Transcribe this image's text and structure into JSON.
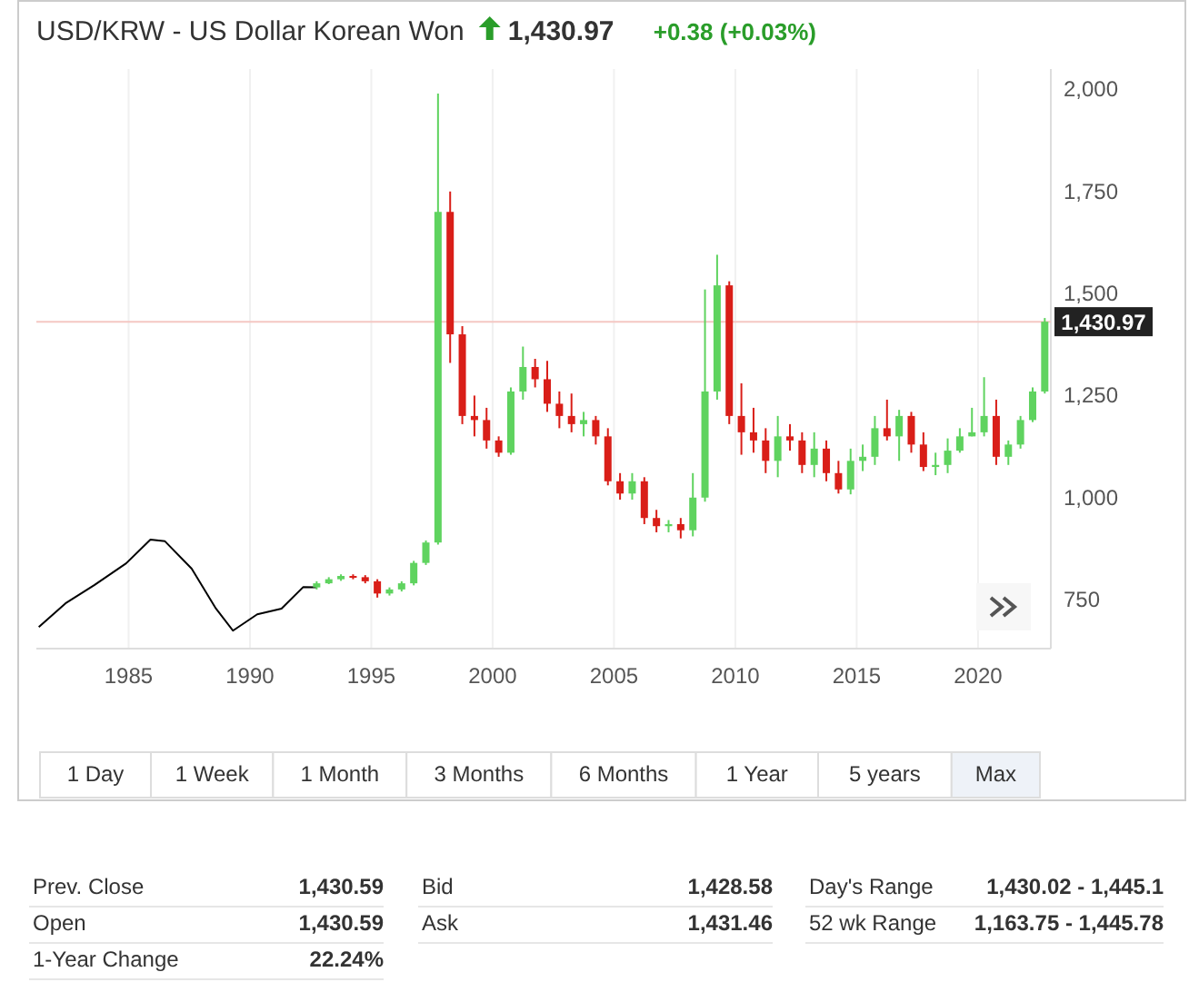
{
  "chart_data": [
    {
      "type": "candlestick",
      "title": "USD/KRW - US Dollar Korean Won",
      "annotations": [
        "1,430.97",
        "+0.38 (+0.03%)"
      ],
      "xlim": [
        1981.2,
        2023
      ],
      "xticks": [
        1985,
        1990,
        1995,
        2000,
        2005,
        2010,
        2015,
        2020
      ],
      "ylim": [
        630,
        2050
      ],
      "yticks": [
        {
          "value": 750,
          "label": "750"
        },
        {
          "value": 1000,
          "label": "1,000"
        },
        {
          "value": 1250,
          "label": "1,250"
        },
        {
          "value": 1500,
          "label": "1,500"
        },
        {
          "value": 1750,
          "label": "1,750"
        },
        {
          "value": 2000,
          "label": "2,000"
        }
      ],
      "grid": "x",
      "ref_lines": [
        {
          "axis": "y",
          "value": 1430.97,
          "label": "1,430.97",
          "color": "#f4c7c3"
        }
      ],
      "x": [
        1992.75,
        1993.25,
        1993.75,
        1994.25,
        1994.75,
        1995.25,
        1995.75,
        1996.25,
        1996.75,
        1997.25,
        1997.75,
        1998.25,
        1998.75,
        1999.25,
        1999.75,
        2000.25,
        2000.75,
        2001.25,
        2001.75,
        2002.25,
        2002.75,
        2003.25,
        2003.75,
        2004.25,
        2004.75,
        2005.25,
        2005.75,
        2006.25,
        2006.75,
        2007.25,
        2007.75,
        2008.25,
        2008.75,
        2009.25,
        2009.75,
        2010.25,
        2010.75,
        2011.25,
        2011.75,
        2012.25,
        2012.75,
        2013.25,
        2013.75,
        2014.25,
        2014.75,
        2015.25,
        2015.75,
        2016.25,
        2016.75,
        2017.25,
        2017.75,
        2018.25,
        2018.75,
        2019.25,
        2019.75,
        2020.25,
        2020.75,
        2021.25,
        2021.75,
        2022.25,
        2022.75
      ],
      "ohlc": [
        [
          780,
          795,
          775,
          790
        ],
        [
          790,
          805,
          788,
          800
        ],
        [
          800,
          812,
          796,
          808
        ],
        [
          808,
          812,
          800,
          805
        ],
        [
          805,
          810,
          790,
          795
        ],
        [
          795,
          800,
          755,
          765
        ],
        [
          765,
          780,
          760,
          775
        ],
        [
          775,
          795,
          770,
          790
        ],
        [
          790,
          845,
          785,
          840
        ],
        [
          840,
          895,
          835,
          890
        ],
        [
          890,
          1990,
          885,
          1700
        ],
        [
          1700,
          1750,
          1330,
          1400
        ],
        [
          1400,
          1420,
          1180,
          1200
        ],
        [
          1200,
          1250,
          1150,
          1190
        ],
        [
          1190,
          1220,
          1120,
          1140
        ],
        [
          1140,
          1150,
          1100,
          1110
        ],
        [
          1110,
          1270,
          1105,
          1260
        ],
        [
          1260,
          1370,
          1240,
          1320
        ],
        [
          1320,
          1340,
          1270,
          1290
        ],
        [
          1290,
          1335,
          1210,
          1230
        ],
        [
          1230,
          1260,
          1170,
          1200
        ],
        [
          1200,
          1255,
          1160,
          1180
        ],
        [
          1180,
          1210,
          1150,
          1190
        ],
        [
          1190,
          1200,
          1130,
          1150
        ],
        [
          1150,
          1170,
          1030,
          1040
        ],
        [
          1040,
          1060,
          995,
          1010
        ],
        [
          1010,
          1060,
          995,
          1040
        ],
        [
          1040,
          1050,
          935,
          950
        ],
        [
          950,
          970,
          915,
          930
        ],
        [
          930,
          945,
          915,
          935
        ],
        [
          935,
          950,
          900,
          920
        ],
        [
          920,
          1060,
          905,
          1000
        ],
        [
          1000,
          1510,
          990,
          1260
        ],
        [
          1260,
          1595,
          1240,
          1520
        ],
        [
          1520,
          1530,
          1180,
          1200
        ],
        [
          1200,
          1280,
          1105,
          1160
        ],
        [
          1160,
          1220,
          1110,
          1140
        ],
        [
          1140,
          1170,
          1060,
          1090
        ],
        [
          1090,
          1200,
          1050,
          1150
        ],
        [
          1150,
          1180,
          1115,
          1140
        ],
        [
          1140,
          1160,
          1060,
          1080
        ],
        [
          1080,
          1160,
          1050,
          1120
        ],
        [
          1120,
          1140,
          1040,
          1060
        ],
        [
          1060,
          1090,
          1010,
          1020
        ],
        [
          1020,
          1120,
          1008,
          1090
        ],
        [
          1090,
          1130,
          1065,
          1100
        ],
        [
          1100,
          1200,
          1080,
          1170
        ],
        [
          1170,
          1240,
          1140,
          1150
        ],
        [
          1150,
          1215,
          1090,
          1200
        ],
        [
          1200,
          1210,
          1110,
          1130
        ],
        [
          1130,
          1160,
          1065,
          1075
        ],
        [
          1075,
          1110,
          1055,
          1080
        ],
        [
          1080,
          1145,
          1060,
          1115
        ],
        [
          1115,
          1170,
          1110,
          1150
        ],
        [
          1150,
          1220,
          1150,
          1160
        ],
        [
          1160,
          1295,
          1150,
          1200
        ],
        [
          1200,
          1240,
          1080,
          1100
        ],
        [
          1100,
          1140,
          1080,
          1130
        ],
        [
          1130,
          1200,
          1120,
          1190
        ],
        [
          1190,
          1270,
          1185,
          1260
        ],
        [
          1260,
          1440,
          1255,
          1430.97
        ]
      ],
      "colors": [
        "#5fd35f",
        "#5fd35f",
        "#5fd35f",
        "#d91e18",
        "#d91e18",
        "#d91e18",
        "#5fd35f",
        "#5fd35f",
        "#5fd35f",
        "#5fd35f",
        "#5fd35f",
        "#d91e18",
        "#d91e18",
        "#d91e18",
        "#d91e18",
        "#d91e18",
        "#5fd35f",
        "#5fd35f",
        "#d91e18",
        "#d91e18",
        "#d91e18",
        "#d91e18",
        "#5fd35f",
        "#d91e18",
        "#d91e18",
        "#d91e18",
        "#5fd35f",
        "#d91e18",
        "#d91e18",
        "#5fd35f",
        "#d91e18",
        "#5fd35f",
        "#5fd35f",
        "#5fd35f",
        "#d91e18",
        "#d91e18",
        "#d91e18",
        "#d91e18",
        "#5fd35f",
        "#d91e18",
        "#d91e18",
        "#5fd35f",
        "#d91e18",
        "#d91e18",
        "#5fd35f",
        "#5fd35f",
        "#5fd35f",
        "#d91e18",
        "#5fd35f",
        "#d91e18",
        "#d91e18",
        "#5fd35f",
        "#5fd35f",
        "#5fd35f",
        "#5fd35f",
        "#5fd35f",
        "#d91e18",
        "#5fd35f",
        "#5fd35f",
        "#5fd35f",
        "#5fd35f"
      ],
      "series": [
        {
          "type": "line",
          "color": "#000000",
          "x": [
            1981.3,
            1982.4,
            1983.6,
            1984.9,
            1985.9,
            1986.5,
            1987.6,
            1988.6,
            1989.3,
            1990.3,
            1991.3,
            1992.2,
            1992.75
          ],
          "values": [
            683,
            741,
            786,
            839,
            897,
            893,
            826,
            728,
            674,
            714,
            728,
            781,
            780
          ]
        }
      ]
    },
    {
      "type": "other",
      "categories": [
        "1 Day",
        "1 Week",
        "1 Month",
        "3 Months",
        "6 Months",
        "1 Year",
        "5 years",
        "Max"
      ],
      "annotations": [
        "Prev. Close",
        "1,430.59",
        "Open",
        "1,430.59",
        "1-Year Change",
        "22.24%",
        "Bid",
        "1,428.58",
        "Ask",
        "1,431.46",
        "Day's Range",
        "1,430.02 - 1,445.1",
        "52 wk Range",
        "1,163.75 - 1,445.78"
      ]
    }
  ]
}
